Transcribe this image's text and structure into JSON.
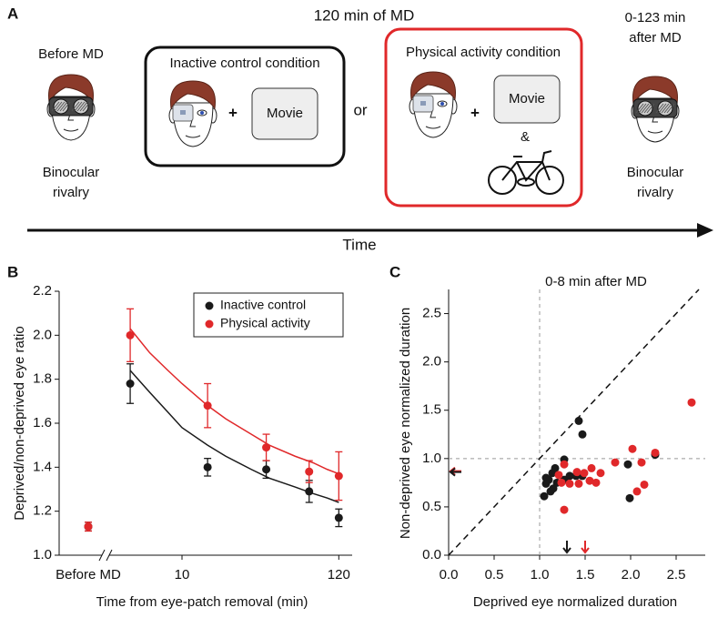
{
  "panel_a": {
    "label": "A",
    "title": "120 min of MD",
    "before": "Before MD",
    "before_caption": [
      "Binocular",
      "rivalry"
    ],
    "inactive": {
      "title": "Inactive control condition",
      "plus": "+",
      "movie": "Movie"
    },
    "or": "or",
    "active": {
      "title": "Physical activity condition",
      "plus": "+",
      "movie": "Movie",
      "and": "&"
    },
    "after": [
      "0-123 min",
      "after MD"
    ],
    "after_caption": [
      "Binocular",
      "rivalry"
    ],
    "axis": "Time"
  },
  "chart_data": [
    {
      "type": "errorbar",
      "panel": "B",
      "xlabel": "Time from eye-patch removal (min)",
      "ylabel": "Deprived/non-deprived eye ratio",
      "log_x": true,
      "xlim": [
        3.2,
        140
      ],
      "xticks": [
        10,
        120
      ],
      "baseline_label": "Before MD",
      "ylim": [
        1.0,
        2.2
      ],
      "yticks": [
        {
          "value": 1.0,
          "label": "1.0"
        },
        1.2,
        1.4,
        1.6,
        1.8,
        {
          "value": 2.0,
          "label": "2.0"
        },
        2.2
      ],
      "legend": "upper right",
      "x": [
        4.4,
        15,
        38,
        75,
        120
      ],
      "fit_x": [
        4.4,
        6,
        8,
        10,
        15,
        20,
        30,
        40,
        60,
        80,
        100,
        120
      ],
      "series": [
        {
          "name": "Inactive control",
          "color": "#1a1a1a",
          "baseline": 1.13,
          "baseline_error": 0.02,
          "values": [
            1.78,
            1.4,
            1.39,
            1.29,
            1.17
          ],
          "errors": [
            0.09,
            0.04,
            0.04,
            0.05,
            0.04
          ],
          "fit": [
            1.84,
            1.74,
            1.65,
            1.58,
            1.5,
            1.45,
            1.39,
            1.35,
            1.31,
            1.28,
            1.26,
            1.24
          ]
        },
        {
          "name": "Physical activity",
          "color": "#e0282a",
          "baseline": 1.13,
          "baseline_error": 0.02,
          "values": [
            2.0,
            1.68,
            1.49,
            1.38,
            1.36
          ],
          "errors": [
            0.12,
            0.1,
            0.06,
            0.05,
            0.11
          ],
          "fit": [
            2.03,
            1.92,
            1.84,
            1.78,
            1.68,
            1.62,
            1.55,
            1.5,
            1.45,
            1.42,
            1.39,
            1.37
          ]
        }
      ]
    },
    {
      "type": "scatter",
      "panel": "C",
      "title": "0-8 min after MD",
      "xlabel": "Deprived eye normalized duration",
      "ylabel": "Non-deprived eye normalized duration",
      "xlim": [
        0,
        2.82
      ],
      "ylim": [
        0,
        2.75
      ],
      "reference": 1,
      "diagonal": true,
      "xticks": [
        {
          "value": 0,
          "label": "0.0"
        },
        0.5,
        {
          "value": 1,
          "label": "1.0"
        },
        1.5,
        {
          "value": 2,
          "label": "2.0"
        },
        2.5
      ],
      "yticks": [
        {
          "value": 0,
          "label": "0.0"
        },
        0.5,
        {
          "value": 1,
          "label": "1.0"
        },
        1.5,
        {
          "value": 2,
          "label": "2.0"
        },
        2.5
      ],
      "series": [
        {
          "color": "#1a1a1a",
          "mean_x": 1.3,
          "mean_y": 0.86,
          "x": [
            1.14,
            1.1,
            1.07,
            1.05,
            1.12,
            1.15,
            1.19,
            1.27,
            1.33,
            1.4,
            1.47,
            1.27,
            1.43,
            1.47,
            1.97,
            1.99,
            2.27,
            1.07,
            1.17
          ],
          "values": [
            0.85,
            0.78,
            0.74,
            0.61,
            0.66,
            0.69,
            0.75,
            0.78,
            0.82,
            0.82,
            0.82,
            0.99,
            1.39,
            1.25,
            0.94,
            0.59,
            1.04,
            0.8,
            0.9
          ]
        },
        {
          "color": "#e0282a",
          "mean_x": 1.5,
          "mean_y": 0.87,
          "x": [
            2.67,
            2.27,
            2.15,
            2.02,
            2.12,
            1.27,
            1.33,
            1.41,
            1.49,
            1.55,
            1.57,
            1.24,
            1.21,
            1.27,
            1.43,
            1.67,
            1.62,
            1.83,
            2.07
          ],
          "values": [
            1.58,
            1.06,
            0.73,
            1.1,
            0.96,
            0.94,
            0.74,
            0.86,
            0.85,
            0.77,
            0.9,
            0.75,
            0.83,
            0.47,
            0.74,
            0.85,
            0.75,
            0.96,
            0.66
          ]
        }
      ]
    }
  ]
}
